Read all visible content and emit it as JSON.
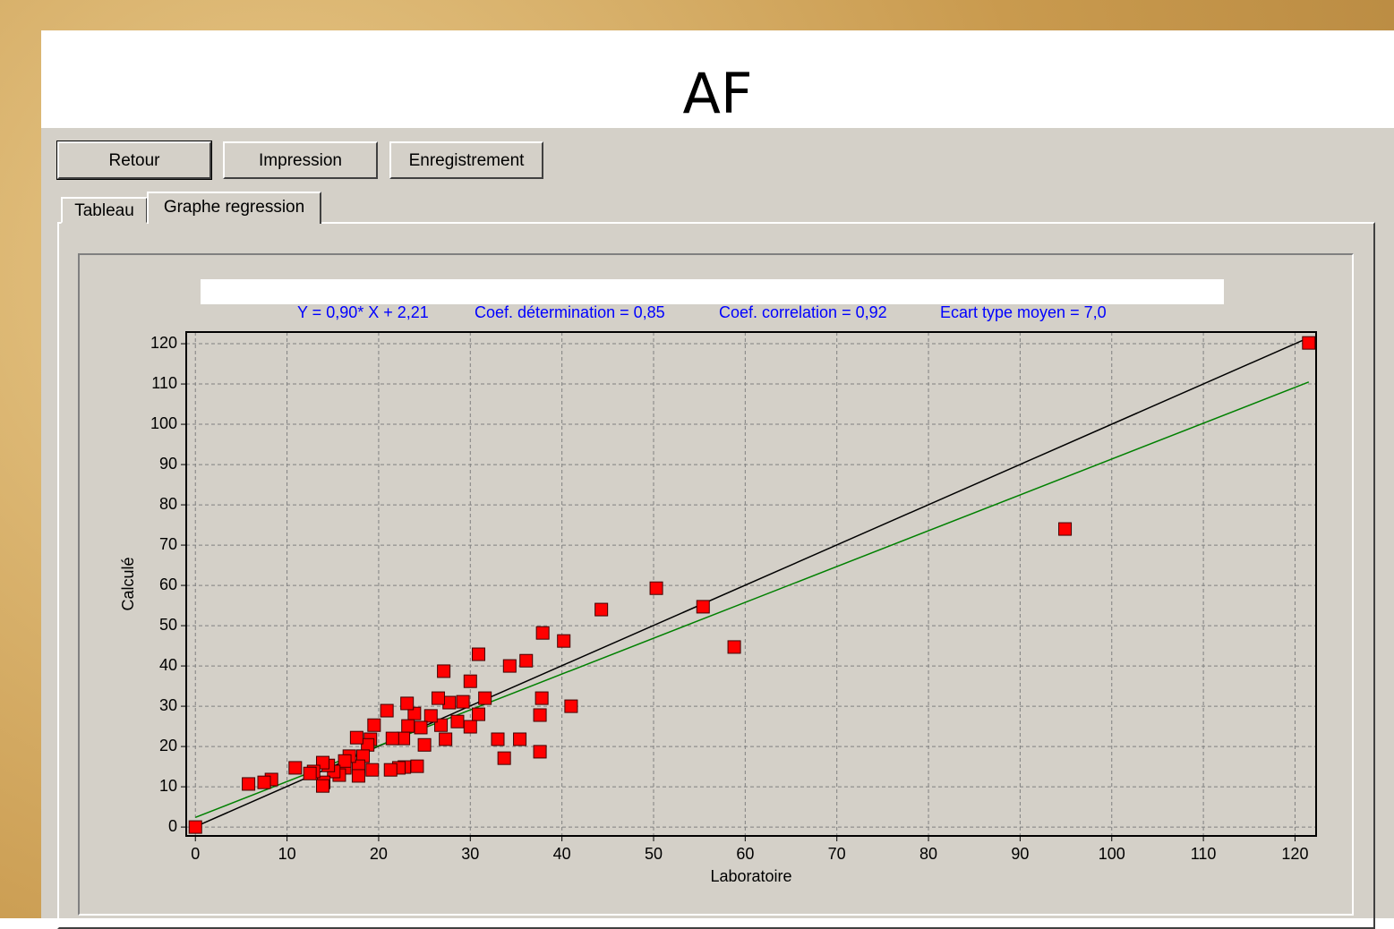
{
  "title": "AF",
  "buttons": [
    "Retour",
    "Impression",
    "Enregistrement"
  ],
  "tabs": [
    "Tableau",
    "Graphe regression"
  ],
  "chart_data": {
    "type": "scatter",
    "annotations": [
      "Y = 0,90* X + 2,21",
      "Coef. détermination = 0,85",
      "Coef. correlation = 0,92",
      "Ecart type moyen = 7,0"
    ],
    "xlabel": "Laboratoire",
    "ylabel": "Calculé",
    "xlim": [
      -1,
      122.3
    ],
    "ylim": [
      -2.2,
      122.9
    ],
    "xticks": [
      0,
      10,
      20,
      30,
      40,
      50,
      60,
      70,
      80,
      90,
      100,
      110,
      120
    ],
    "yticks": [
      0,
      10,
      20,
      30,
      40,
      50,
      60,
      70,
      80,
      90,
      100,
      110,
      120
    ],
    "grid": true,
    "series": [
      {
        "color": "#ff0000",
        "x": [
          0,
          121.5,
          94.9,
          50.3,
          55.4,
          58.8,
          44.3,
          40.2,
          37.9,
          36.1,
          34.3,
          30.9,
          27.1,
          30,
          41,
          37.8,
          37.6,
          37.6,
          35.4,
          33,
          33.7,
          31.6,
          30.9,
          30,
          29.2,
          28.6,
          27.7,
          26.5,
          26.8,
          27.3,
          25.7,
          25,
          24.2,
          24.6,
          23.9,
          23.1,
          22.8,
          23.2,
          22.7,
          22.2,
          21.5,
          21.3,
          20.9,
          19.5,
          19.3,
          19.1,
          18.8,
          18.3,
          17.6,
          17.8,
          17.8,
          16.8,
          16.3,
          15.7,
          16.3,
          15.1,
          14.5,
          13.9,
          14,
          13.9,
          12.9,
          12.5,
          10.9,
          8.3,
          7.5,
          5.8
        ],
        "values": [
          0,
          120.2,
          74,
          59.3,
          54.7,
          44.7,
          54,
          46.2,
          48.2,
          41.3,
          40,
          42.9,
          38.7,
          36.2,
          30,
          32,
          27.8,
          18.7,
          21.8,
          21.8,
          17.1,
          32,
          28,
          24.9,
          31.1,
          26.2,
          30.9,
          32,
          25.3,
          21.8,
          27.6,
          20.4,
          15.1,
          24.7,
          28.2,
          30.7,
          14.9,
          25.1,
          22,
          14.7,
          22,
          14.2,
          28.9,
          25.3,
          14.2,
          21.8,
          20.4,
          17.6,
          22.2,
          15.1,
          12.7,
          17.6,
          14.7,
          12.9,
          16.4,
          13.8,
          15.3,
          16,
          11.1,
          10.2,
          13.8,
          13.3,
          14.7,
          11.8,
          11.1,
          10.7
        ]
      }
    ],
    "lines": [
      {
        "color": "#000000",
        "x": [
          0.3,
          121.5
        ],
        "values": [
          0.4,
          121.5
        ]
      },
      {
        "color": "#008000",
        "x": [
          0,
          121.5
        ],
        "values": [
          2.4,
          110.5
        ]
      }
    ]
  }
}
